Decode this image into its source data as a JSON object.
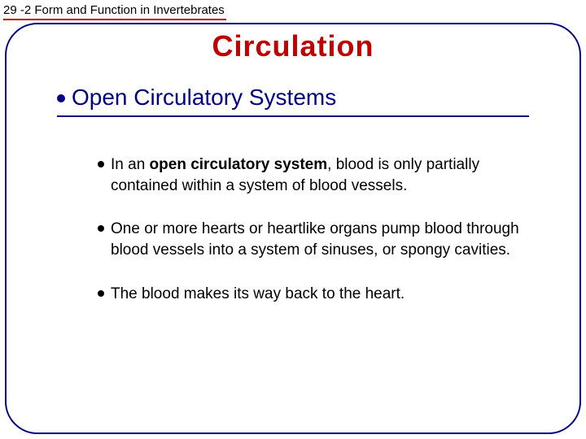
{
  "header_label": "29 -2 Form and Function in Invertebrates",
  "title": "Circulation",
  "subhead": "Open Circulatory Systems",
  "bullets": [
    {
      "prefix": "In an ",
      "bold": "open circulatory system",
      "rest": ", blood is only partially contained within a system of blood vessels."
    },
    {
      "prefix": "",
      "bold": "",
      "rest": "One or more hearts or heartlike organs pump blood through blood vessels into a system of sinuses, or spongy cavities."
    },
    {
      "prefix": "",
      "bold": "",
      "rest": "The blood makes its way back to the heart."
    }
  ],
  "colors": {
    "accent_red": "#c00000",
    "accent_navy": "#000080",
    "text": "#000000",
    "background": "#ffffff"
  },
  "typography": {
    "header_label_fontsize": 15,
    "title_fontsize": 36,
    "subhead_fontsize": 28,
    "body_fontsize": 19
  }
}
